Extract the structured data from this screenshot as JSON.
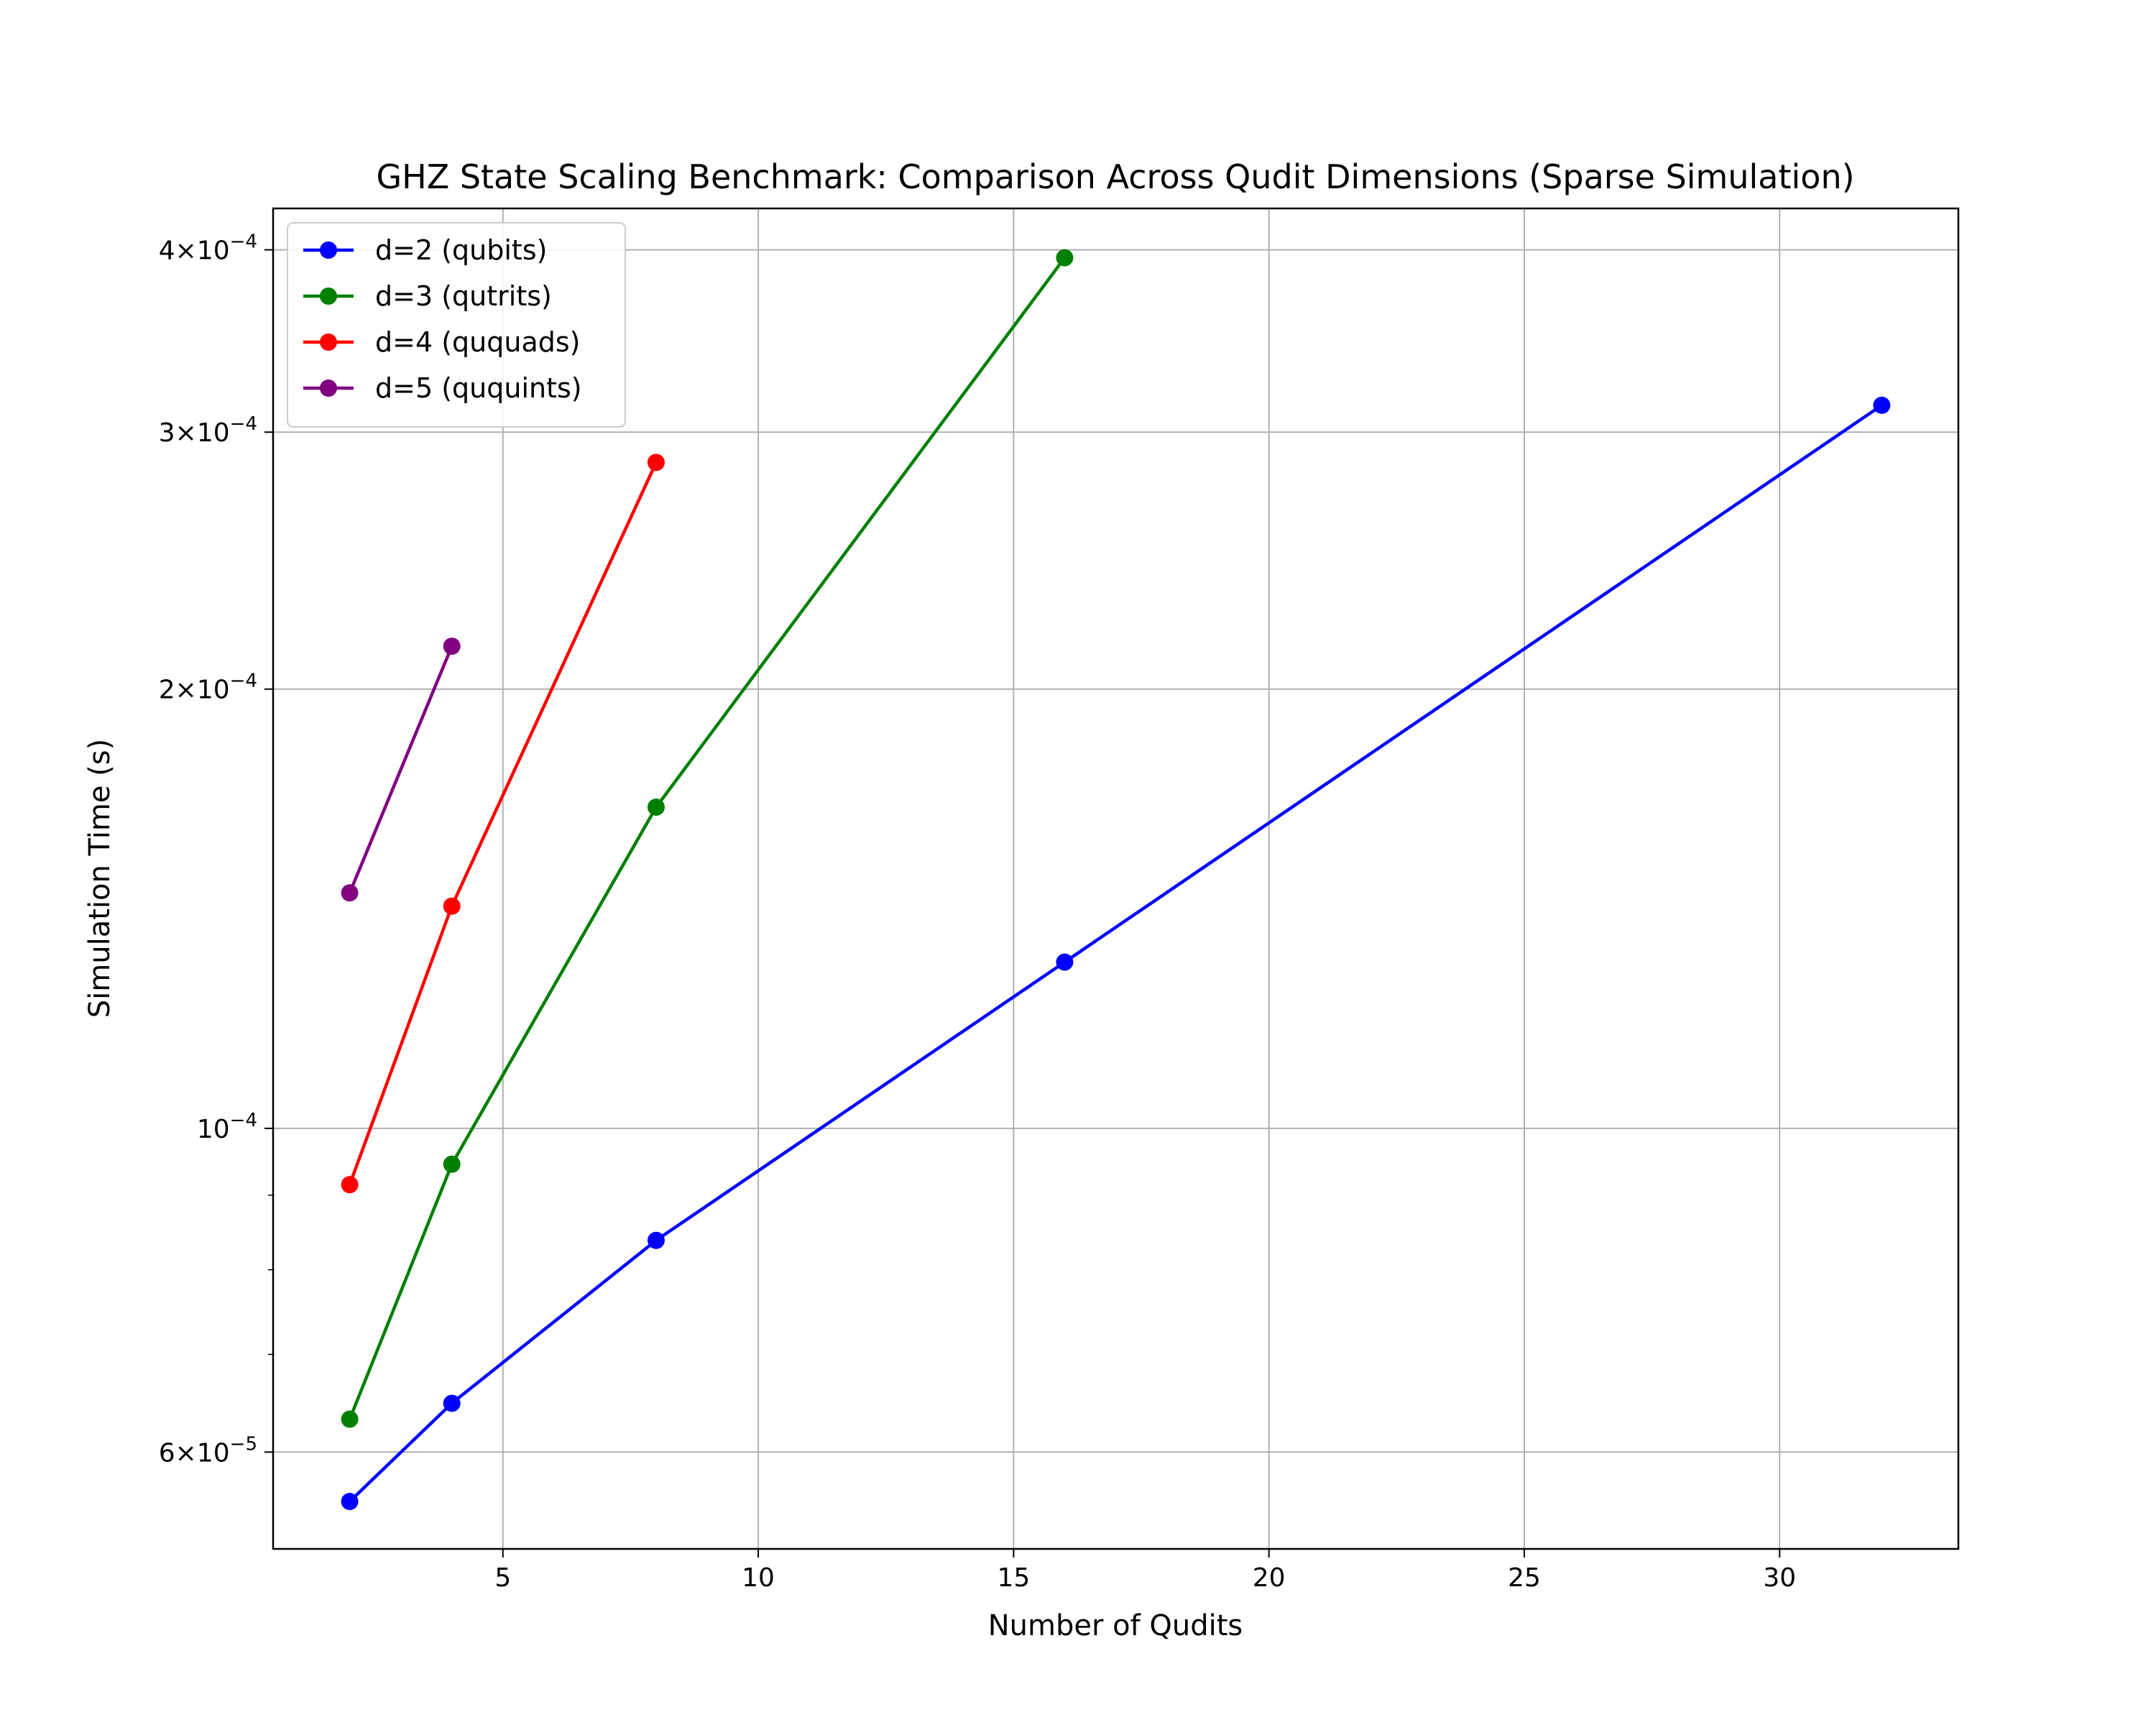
{
  "chart_data": {
    "type": "line",
    "title": "GHZ State Scaling Benchmark: Comparison Across Qudit Dimensions (Sparse Simulation)",
    "xlabel": "Number of Qudits",
    "ylabel": "Simulation Time (s)",
    "xlim": [
      0.5,
      33.5
    ],
    "ylim": [
      5.15e-05,
      0.000427
    ],
    "yscale": "log",
    "grid": true,
    "legend_position": "top-left",
    "x_ticks": [
      5,
      10,
      15,
      20,
      25,
      30
    ],
    "x_tick_labels": [
      "5",
      "10",
      "15",
      "20",
      "25",
      "30"
    ],
    "y_ticks": [
      {
        "value": 6e-05,
        "mantissa": "6",
        "exponent": "−5"
      },
      {
        "value": 0.0001,
        "mantissa": "",
        "exponent": "−4"
      },
      {
        "value": 0.0002,
        "mantissa": "2",
        "exponent": "−4"
      },
      {
        "value": 0.0003,
        "mantissa": "3",
        "exponent": "−4"
      },
      {
        "value": 0.0004,
        "mantissa": "4",
        "exponent": "−4"
      }
    ],
    "series": [
      {
        "name": "d=2 (qubits)",
        "color": "#0000ff",
        "x": [
          2,
          4,
          8,
          16,
          32
        ],
        "y": [
          5.55e-05,
          6.48e-05,
          8.38e-05,
          0.00013,
          0.000313
        ]
      },
      {
        "name": "d=3 (qutrits)",
        "color": "#008000",
        "x": [
          2,
          4,
          8,
          16
        ],
        "y": [
          6.32e-05,
          9.45e-05,
          0.000166,
          0.000395
        ]
      },
      {
        "name": "d=4 (ququads)",
        "color": "#ff0000",
        "x": [
          2,
          4,
          8
        ],
        "y": [
          9.15e-05,
          0.000142,
          0.000286
        ]
      },
      {
        "name": "d=5 (ququints)",
        "color": "#800080",
        "x": [
          2,
          4
        ],
        "y": [
          0.000145,
          0.000214
        ]
      }
    ]
  }
}
